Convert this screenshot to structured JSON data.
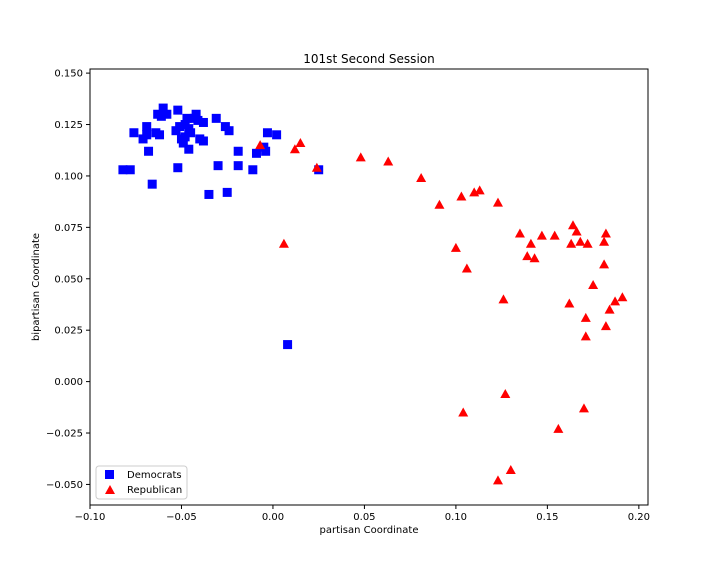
{
  "chart_data": {
    "type": "scatter",
    "title": "101st Second Session",
    "xlabel": "partisan Coordinate",
    "ylabel": "bipartisan Coordinate",
    "xlim": [
      -0.1,
      0.205
    ],
    "ylim": [
      -0.06,
      0.152
    ],
    "x_ticks": [
      -0.1,
      -0.05,
      0.0,
      0.05,
      0.1,
      0.15,
      0.2
    ],
    "x_tick_labels": [
      "−0.10",
      "−0.05",
      "0.00",
      "0.05",
      "0.10",
      "0.15",
      "0.20"
    ],
    "y_ticks": [
      -0.05,
      -0.025,
      0.0,
      0.025,
      0.05,
      0.075,
      0.1,
      0.125,
      0.15
    ],
    "y_tick_labels": [
      "−0.050",
      "−0.025",
      "0.000",
      "0.025",
      "0.050",
      "0.075",
      "0.100",
      "0.125",
      "0.150"
    ],
    "grid": false,
    "legend_position": "lower-left",
    "series": [
      {
        "name": "Democrats",
        "marker": "square",
        "color": "#0000ff",
        "points": [
          [
            -0.082,
            0.103
          ],
          [
            -0.078,
            0.103
          ],
          [
            -0.076,
            0.121
          ],
          [
            -0.071,
            0.118
          ],
          [
            -0.069,
            0.124
          ],
          [
            -0.069,
            0.12
          ],
          [
            -0.068,
            0.112
          ],
          [
            -0.066,
            0.096
          ],
          [
            -0.064,
            0.121
          ],
          [
            -0.063,
            0.13
          ],
          [
            -0.062,
            0.12
          ],
          [
            -0.061,
            0.129
          ],
          [
            -0.06,
            0.133
          ],
          [
            -0.058,
            0.13
          ],
          [
            -0.053,
            0.122
          ],
          [
            -0.052,
            0.132
          ],
          [
            -0.052,
            0.104
          ],
          [
            -0.051,
            0.124
          ],
          [
            -0.05,
            0.118
          ],
          [
            -0.049,
            0.116
          ],
          [
            -0.048,
            0.119
          ],
          [
            -0.048,
            0.125
          ],
          [
            -0.047,
            0.128
          ],
          [
            -0.046,
            0.113
          ],
          [
            -0.046,
            0.123
          ],
          [
            -0.045,
            0.121
          ],
          [
            -0.043,
            0.128
          ],
          [
            -0.042,
            0.13
          ],
          [
            -0.041,
            0.127
          ],
          [
            -0.04,
            0.118
          ],
          [
            -0.038,
            0.117
          ],
          [
            -0.038,
            0.126
          ],
          [
            -0.035,
            0.091
          ],
          [
            -0.031,
            0.128
          ],
          [
            -0.03,
            0.105
          ],
          [
            -0.026,
            0.124
          ],
          [
            -0.025,
            0.092
          ],
          [
            -0.024,
            0.122
          ],
          [
            -0.019,
            0.112
          ],
          [
            -0.019,
            0.105
          ],
          [
            -0.011,
            0.103
          ],
          [
            -0.009,
            0.111
          ],
          [
            -0.005,
            0.114
          ],
          [
            -0.004,
            0.112
          ],
          [
            -0.003,
            0.121
          ],
          [
            0.002,
            0.12
          ],
          [
            0.008,
            0.018
          ],
          [
            0.025,
            0.103
          ]
        ]
      },
      {
        "name": "Republican",
        "marker": "triangle",
        "color": "#ff0000",
        "points": [
          [
            -0.007,
            0.115
          ],
          [
            0.006,
            0.067
          ],
          [
            0.012,
            0.113
          ],
          [
            0.015,
            0.116
          ],
          [
            0.024,
            0.104
          ],
          [
            0.048,
            0.109
          ],
          [
            0.063,
            0.107
          ],
          [
            0.081,
            0.099
          ],
          [
            0.091,
            0.086
          ],
          [
            0.1,
            0.065
          ],
          [
            0.103,
            0.09
          ],
          [
            0.104,
            -0.015
          ],
          [
            0.106,
            0.055
          ],
          [
            0.11,
            0.092
          ],
          [
            0.113,
            0.093
          ],
          [
            0.123,
            0.087
          ],
          [
            0.123,
            -0.048
          ],
          [
            0.126,
            0.04
          ],
          [
            0.127,
            -0.006
          ],
          [
            0.13,
            -0.043
          ],
          [
            0.135,
            0.072
          ],
          [
            0.139,
            0.061
          ],
          [
            0.141,
            0.067
          ],
          [
            0.143,
            0.06
          ],
          [
            0.147,
            0.071
          ],
          [
            0.154,
            0.071
          ],
          [
            0.156,
            -0.023
          ],
          [
            0.162,
            0.038
          ],
          [
            0.163,
            0.067
          ],
          [
            0.164,
            0.076
          ],
          [
            0.166,
            0.073
          ],
          [
            0.168,
            0.068
          ],
          [
            0.17,
            -0.013
          ],
          [
            0.171,
            0.022
          ],
          [
            0.171,
            0.031
          ],
          [
            0.172,
            0.067
          ],
          [
            0.175,
            0.047
          ],
          [
            0.181,
            0.068
          ],
          [
            0.181,
            0.057
          ],
          [
            0.182,
            0.072
          ],
          [
            0.182,
            0.027
          ],
          [
            0.184,
            0.035
          ],
          [
            0.187,
            0.039
          ],
          [
            0.191,
            0.041
          ]
        ]
      }
    ]
  }
}
